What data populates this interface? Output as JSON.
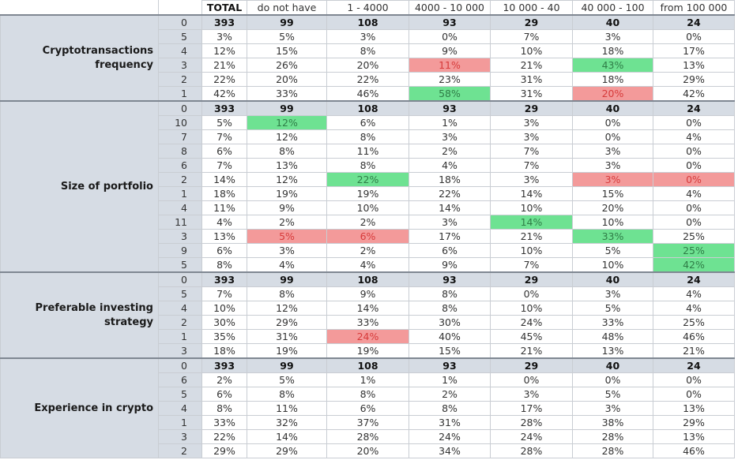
{
  "chart_data": {
    "type": "table",
    "columns": [
      "TOTAL",
      "do not have",
      "1 - 4000",
      "4000 - 10 000",
      "10 000 - 40",
      "40 000 - 100",
      "from 100 000"
    ],
    "highlight_colors": {
      "green": "#6ee292",
      "red": "#f39a9a",
      "header_fill": "#d6dce4"
    },
    "sections": [
      {
        "name": "Cryptotransactions frequency",
        "rows": [
          {
            "code": "0",
            "values": [
              "393",
              "99",
              "108",
              "93",
              "29",
              "40",
              "24"
            ]
          },
          {
            "code": "5",
            "values": [
              "3%",
              "5%",
              "3%",
              "0%",
              "7%",
              "3%",
              "0%"
            ]
          },
          {
            "code": "4",
            "values": [
              "12%",
              "15%",
              "8%",
              "9%",
              "10%",
              "18%",
              "17%"
            ]
          },
          {
            "code": "3",
            "values": [
              "21%",
              "26%",
              "20%",
              "11%",
              "21%",
              "43%",
              "13%"
            ],
            "highlights": {
              "3": "red",
              "5": "green"
            }
          },
          {
            "code": "2",
            "values": [
              "22%",
              "20%",
              "22%",
              "23%",
              "31%",
              "18%",
              "29%"
            ]
          },
          {
            "code": "1",
            "values": [
              "42%",
              "33%",
              "46%",
              "58%",
              "31%",
              "20%",
              "42%"
            ],
            "highlights": {
              "3": "green",
              "5": "red"
            }
          }
        ]
      },
      {
        "name": "Size of portfolio",
        "rows": [
          {
            "code": "0",
            "values": [
              "393",
              "99",
              "108",
              "93",
              "29",
              "40",
              "24"
            ]
          },
          {
            "code": "10",
            "values": [
              "5%",
              "12%",
              "6%",
              "1%",
              "3%",
              "0%",
              "0%"
            ],
            "highlights": {
              "1": "green"
            }
          },
          {
            "code": "7",
            "values": [
              "7%",
              "12%",
              "8%",
              "3%",
              "3%",
              "0%",
              "4%"
            ]
          },
          {
            "code": "8",
            "values": [
              "6%",
              "8%",
              "11%",
              "2%",
              "7%",
              "3%",
              "0%"
            ]
          },
          {
            "code": "6",
            "values": [
              "7%",
              "13%",
              "8%",
              "4%",
              "7%",
              "3%",
              "0%"
            ]
          },
          {
            "code": "2",
            "values": [
              "14%",
              "12%",
              "22%",
              "18%",
              "3%",
              "3%",
              "0%"
            ],
            "highlights": {
              "2": "green",
              "5": "red",
              "6": "red"
            }
          },
          {
            "code": "1",
            "values": [
              "18%",
              "19%",
              "19%",
              "22%",
              "14%",
              "15%",
              "4%"
            ]
          },
          {
            "code": "4",
            "values": [
              "11%",
              "9%",
              "10%",
              "14%",
              "10%",
              "20%",
              "0%"
            ]
          },
          {
            "code": "11",
            "values": [
              "4%",
              "2%",
              "2%",
              "3%",
              "14%",
              "10%",
              "0%"
            ],
            "highlights": {
              "4": "green"
            }
          },
          {
            "code": "3",
            "values": [
              "13%",
              "5%",
              "6%",
              "17%",
              "21%",
              "33%",
              "25%"
            ],
            "highlights": {
              "1": "red",
              "2": "red",
              "5": "green"
            }
          },
          {
            "code": "9",
            "values": [
              "6%",
              "3%",
              "2%",
              "6%",
              "10%",
              "5%",
              "25%"
            ],
            "highlights": {
              "6": "green"
            }
          },
          {
            "code": "5",
            "values": [
              "8%",
              "4%",
              "4%",
              "9%",
              "7%",
              "10%",
              "42%"
            ],
            "highlights": {
              "6": "green"
            }
          }
        ]
      },
      {
        "name": "Preferable investing strategy",
        "rows": [
          {
            "code": "0",
            "values": [
              "393",
              "99",
              "108",
              "93",
              "29",
              "40",
              "24"
            ]
          },
          {
            "code": "5",
            "values": [
              "7%",
              "8%",
              "9%",
              "8%",
              "0%",
              "3%",
              "4%"
            ]
          },
          {
            "code": "4",
            "values": [
              "10%",
              "12%",
              "14%",
              "8%",
              "10%",
              "5%",
              "4%"
            ]
          },
          {
            "code": "2",
            "values": [
              "30%",
              "29%",
              "33%",
              "30%",
              "24%",
              "33%",
              "25%"
            ]
          },
          {
            "code": "1",
            "values": [
              "35%",
              "31%",
              "24%",
              "40%",
              "45%",
              "48%",
              "46%"
            ],
            "highlights": {
              "2": "red"
            }
          },
          {
            "code": "3",
            "values": [
              "18%",
              "19%",
              "19%",
              "15%",
              "21%",
              "13%",
              "21%"
            ]
          }
        ]
      },
      {
        "name": "Experience in crypto",
        "rows": [
          {
            "code": "0",
            "values": [
              "393",
              "99",
              "108",
              "93",
              "29",
              "40",
              "24"
            ]
          },
          {
            "code": "6",
            "values": [
              "2%",
              "5%",
              "1%",
              "1%",
              "0%",
              "0%",
              "0%"
            ]
          },
          {
            "code": "5",
            "values": [
              "6%",
              "8%",
              "8%",
              "2%",
              "3%",
              "5%",
              "0%"
            ]
          },
          {
            "code": "4",
            "values": [
              "8%",
              "11%",
              "6%",
              "8%",
              "17%",
              "3%",
              "13%"
            ]
          },
          {
            "code": "1",
            "values": [
              "33%",
              "32%",
              "37%",
              "31%",
              "28%",
              "38%",
              "29%"
            ]
          },
          {
            "code": "3",
            "values": [
              "22%",
              "14%",
              "28%",
              "24%",
              "24%",
              "28%",
              "13%"
            ]
          },
          {
            "code": "2",
            "values": [
              "29%",
              "29%",
              "20%",
              "34%",
              "28%",
              "28%",
              "46%"
            ]
          }
        ]
      }
    ]
  }
}
